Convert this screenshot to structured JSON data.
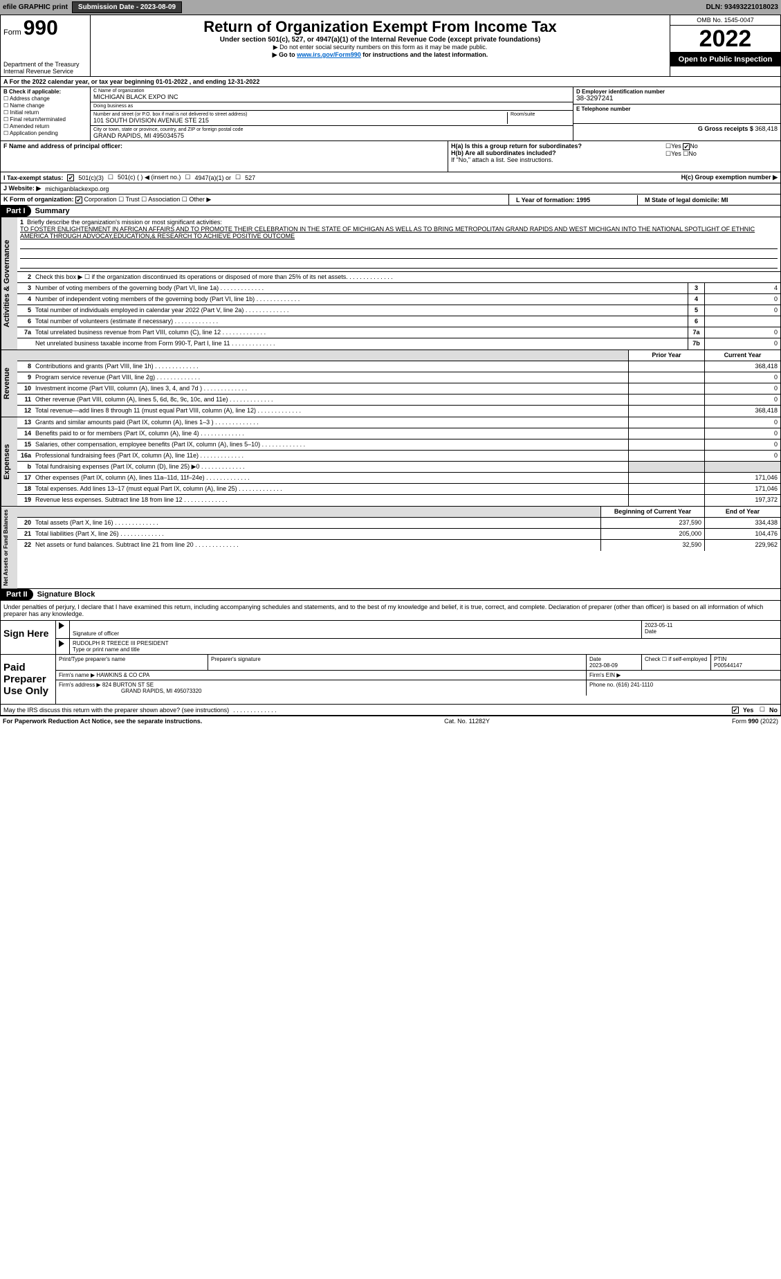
{
  "topbar": {
    "efile": "efile GRAPHIC print",
    "submission_btn": "Submission Date - 2023-08-09",
    "dln": "DLN: 93493221018023"
  },
  "header": {
    "form_label": "Form",
    "form_num": "990",
    "dept": "Department of the Treasury",
    "irs": "Internal Revenue Service",
    "title": "Return of Organization Exempt From Income Tax",
    "sub": "Under section 501(c), 527, or 4947(a)(1) of the Internal Revenue Code (except private foundations)",
    "note1": "▶ Do not enter social security numbers on this form as it may be made public.",
    "note2_pre": "▶ Go to ",
    "note2_link": "www.irs.gov/Form990",
    "note2_post": " for instructions and the latest information.",
    "omb": "OMB No. 1545-0047",
    "year": "2022",
    "open": "Open to Public Inspection"
  },
  "row_a": "A For the 2022 calendar year, or tax year beginning 01-01-2022   , and ending 12-31-2022",
  "col_b": {
    "title": "B Check if applicable:",
    "items": [
      "Address change",
      "Name change",
      "Initial return",
      "Final return/terminated",
      "Amended return",
      "Application pending"
    ]
  },
  "col_c": {
    "name_lbl": "C Name of organization",
    "name": "MICHIGAN BLACK EXPO INC",
    "dba_lbl": "Doing business as",
    "dba": "",
    "street_lbl": "Number and street (or P.O. box if mail is not delivered to street address)",
    "room_lbl": "Room/suite",
    "street": "101 SOUTH DIVISION AVENUE STE 215",
    "city_lbl": "City or town, state or province, country, and ZIP or foreign postal code",
    "city": "GRAND RAPIDS, MI  495034575"
  },
  "col_d": {
    "ein_lbl": "D Employer identification number",
    "ein": "38-3297241",
    "tel_lbl": "E Telephone number",
    "tel": "",
    "gross_lbl": "G Gross receipts $",
    "gross": "368,418"
  },
  "row_f": {
    "f_lbl": "F  Name and address of principal officer:",
    "ha": "H(a)  Is this a group return for subordinates?",
    "hb": "H(b)  Are all subordinates included?",
    "hb_note": "If \"No,\" attach a list. See instructions.",
    "hc": "H(c)  Group exemption number ▶",
    "yes": "Yes",
    "no": "No"
  },
  "tax_status": {
    "lbl": "I  Tax-exempt status:",
    "o1": "501(c)(3)",
    "o2": "501(c) (  ) ◀ (insert no.)",
    "o3": "4947(a)(1) or",
    "o4": "527"
  },
  "website": {
    "lbl": "J  Website: ▶",
    "val": "michiganblackexpo.org"
  },
  "form_org": {
    "lbl": "K Form of organization:",
    "o1": "Corporation",
    "o2": "Trust",
    "o3": "Association",
    "o4": "Other ▶"
  },
  "lm": {
    "l": "L Year of formation: 1995",
    "m": "M State of legal domicile: MI"
  },
  "part1": {
    "num": "Part I",
    "title": "Summary"
  },
  "mission": {
    "num": "1",
    "lbl": "Briefly describe the organization's mission or most significant activities:",
    "txt": "TO FOSTER ENLIGHTENMENT IN AFRICAN AFFAIRS AND TO PROMOTE THEIR CELEBRATION IN THE STATE OF MICHIGAN AS WELL AS TO BRING METROPOLITAN GRAND RAPIDS AND WEST MICHIGAN INTO THE NATIONAL SPOTLIGHT OF ETHNIC AMERICA THROUGH ADVOCAY,EDUCATION,& RESEARCH TO ACHIEVE POSITIVE OUTCOME"
  },
  "gov_lines": [
    {
      "n": "2",
      "d": "Check this box ▶ ☐ if the organization discontinued its operations or disposed of more than 25% of its net assets.",
      "box": "",
      "v": ""
    },
    {
      "n": "3",
      "d": "Number of voting members of the governing body (Part VI, line 1a)",
      "box": "3",
      "v": "4"
    },
    {
      "n": "4",
      "d": "Number of independent voting members of the governing body (Part VI, line 1b)",
      "box": "4",
      "v": "0"
    },
    {
      "n": "5",
      "d": "Total number of individuals employed in calendar year 2022 (Part V, line 2a)",
      "box": "5",
      "v": "0"
    },
    {
      "n": "6",
      "d": "Total number of volunteers (estimate if necessary)",
      "box": "6",
      "v": ""
    },
    {
      "n": "7a",
      "d": "Total unrelated business revenue from Part VIII, column (C), line 12",
      "box": "7a",
      "v": "0"
    },
    {
      "n": "",
      "d": "Net unrelated business taxable income from Form 990-T, Part I, line 11",
      "box": "7b",
      "v": "0"
    }
  ],
  "col_hdrs": {
    "prior": "Prior Year",
    "current": "Current Year"
  },
  "rev_lines": [
    {
      "n": "8",
      "d": "Contributions and grants (Part VIII, line 1h)",
      "p": "",
      "c": "368,418"
    },
    {
      "n": "9",
      "d": "Program service revenue (Part VIII, line 2g)",
      "p": "",
      "c": "0"
    },
    {
      "n": "10",
      "d": "Investment income (Part VIII, column (A), lines 3, 4, and 7d )",
      "p": "",
      "c": "0"
    },
    {
      "n": "11",
      "d": "Other revenue (Part VIII, column (A), lines 5, 6d, 8c, 9c, 10c, and 11e)",
      "p": "",
      "c": "0"
    },
    {
      "n": "12",
      "d": "Total revenue—add lines 8 through 11 (must equal Part VIII, column (A), line 12)",
      "p": "",
      "c": "368,418"
    }
  ],
  "exp_lines": [
    {
      "n": "13",
      "d": "Grants and similar amounts paid (Part IX, column (A), lines 1–3 )",
      "p": "",
      "c": "0"
    },
    {
      "n": "14",
      "d": "Benefits paid to or for members (Part IX, column (A), line 4)",
      "p": "",
      "c": "0"
    },
    {
      "n": "15",
      "d": "Salaries, other compensation, employee benefits (Part IX, column (A), lines 5–10)",
      "p": "",
      "c": "0"
    },
    {
      "n": "16a",
      "d": "Professional fundraising fees (Part IX, column (A), line 11e)",
      "p": "",
      "c": "0"
    },
    {
      "n": "b",
      "d": "Total fundraising expenses (Part IX, column (D), line 25) ▶0",
      "p": "shade",
      "c": "shade"
    },
    {
      "n": "17",
      "d": "Other expenses (Part IX, column (A), lines 11a–11d, 11f–24e)",
      "p": "",
      "c": "171,046"
    },
    {
      "n": "18",
      "d": "Total expenses. Add lines 13–17 (must equal Part IX, column (A), line 25)",
      "p": "",
      "c": "171,046"
    },
    {
      "n": "19",
      "d": "Revenue less expenses. Subtract line 18 from line 12",
      "p": "",
      "c": "197,372"
    }
  ],
  "na_hdrs": {
    "begin": "Beginning of Current Year",
    "end": "End of Year"
  },
  "na_lines": [
    {
      "n": "20",
      "d": "Total assets (Part X, line 16)",
      "p": "237,590",
      "c": "334,438"
    },
    {
      "n": "21",
      "d": "Total liabilities (Part X, line 26)",
      "p": "205,000",
      "c": "104,476"
    },
    {
      "n": "22",
      "d": "Net assets or fund balances. Subtract line 21 from line 20",
      "p": "32,590",
      "c": "229,962"
    }
  ],
  "part2": {
    "num": "Part II",
    "title": "Signature Block"
  },
  "sig_decl": "Under penalties of perjury, I declare that I have examined this return, including accompanying schedules and statements, and to the best of my knowledge and belief, it is true, correct, and complete. Declaration of preparer (other than officer) is based on all information of which preparer has any knowledge.",
  "sign_here": {
    "lbl": "Sign Here",
    "sig_lbl": "Signature of officer",
    "date": "2023-05-11",
    "date_lbl": "Date",
    "name": "RUDOLPH R TREECE III PRESIDENT",
    "name_lbl": "Type or print name and title"
  },
  "paid": {
    "lbl": "Paid Preparer Use Only",
    "prep_name_lbl": "Print/Type preparer's name",
    "prep_sig_lbl": "Preparer's signature",
    "date_lbl": "Date",
    "date": "2023-08-09",
    "check_lbl": "Check ☐ if self-employed",
    "ptin_lbl": "PTIN",
    "ptin": "P00544147",
    "firm_name_lbl": "Firm's name   ▶",
    "firm_name": "HAWKINS & CO CPA",
    "firm_ein_lbl": "Firm's EIN ▶",
    "firm_addr_lbl": "Firm's address ▶",
    "firm_addr": "824 BURTON ST SE",
    "firm_city": "GRAND RAPIDS, MI  495073320",
    "phone_lbl": "Phone no.",
    "phone": "(616) 241-1110"
  },
  "discuss": "May the IRS discuss this return with the preparer shown above? (see instructions)",
  "footer": {
    "left": "For Paperwork Reduction Act Notice, see the separate instructions.",
    "mid": "Cat. No. 11282Y",
    "right": "Form 990 (2022)"
  },
  "vtabs": {
    "gov": "Activities & Governance",
    "rev": "Revenue",
    "exp": "Expenses",
    "na": "Net Assets or Fund Balances"
  }
}
